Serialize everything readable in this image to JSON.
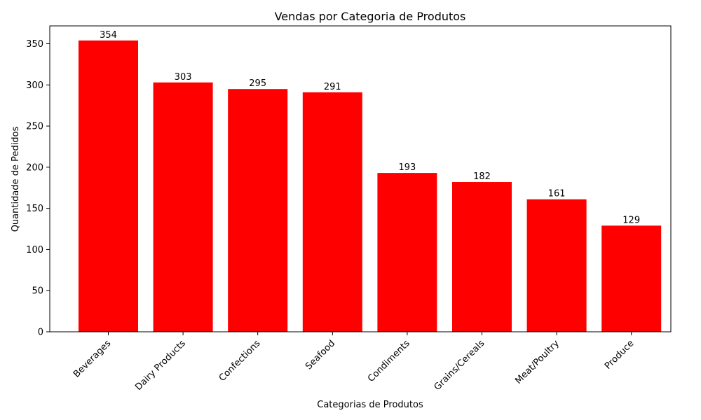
{
  "chart_data": {
    "type": "bar",
    "title": "Vendas por Categoria de Produtos",
    "xlabel": "Categorias de Produtos",
    "ylabel": "Quantidade de Pedidos",
    "categories": [
      "Beverages",
      "Dairy Products",
      "Confections",
      "Seafood",
      "Condiments",
      "Grains/Cereals",
      "Meat/Poultry",
      "Produce"
    ],
    "values": [
      354,
      303,
      295,
      291,
      193,
      182,
      161,
      129
    ],
    "ylim": [
      0,
      371.7
    ],
    "yticks": [
      0,
      50,
      100,
      150,
      200,
      250,
      300,
      350
    ],
    "bar_color": "#ff0000",
    "grid": false,
    "legend": false
  }
}
